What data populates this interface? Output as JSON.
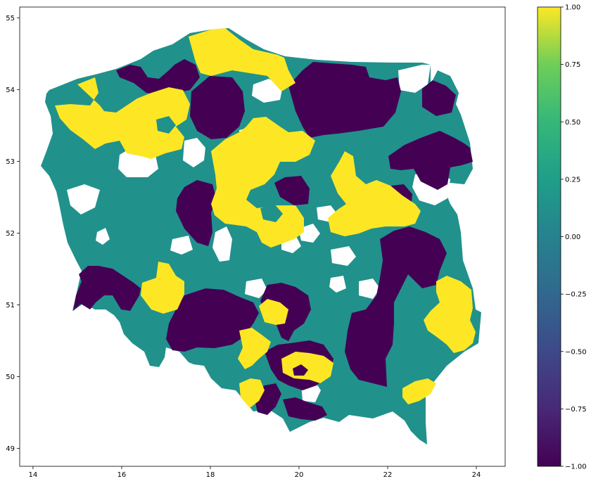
{
  "map": {
    "x_ticks": [
      "14",
      "16",
      "18",
      "20",
      "22",
      "24"
    ],
    "y_ticks": [
      "49",
      "50",
      "51",
      "52",
      "53",
      "54",
      "55"
    ],
    "x_tick_values": [
      14,
      16,
      18,
      20,
      22,
      24
    ],
    "y_tick_values": [
      49,
      50,
      51,
      52,
      53,
      54,
      55
    ],
    "xlim": [
      13.7,
      24.65
    ],
    "ylim": [
      48.75,
      55.15
    ]
  },
  "colorbar": {
    "ticks": [
      "1.00",
      "0.75",
      "0.50",
      "0.25",
      "0.00",
      "−0.25",
      "−0.50",
      "−0.75",
      "−1.00"
    ],
    "tick_values": [
      1,
      0.75,
      0.5,
      0.25,
      0,
      -0.25,
      -0.5,
      -0.75,
      -1
    ],
    "range": [
      -1,
      1
    ],
    "colormap": "viridis"
  },
  "colors": {
    "low": "#440154",
    "mid": "#21918c",
    "high": "#fde725",
    "missing": "#ffffff"
  }
}
